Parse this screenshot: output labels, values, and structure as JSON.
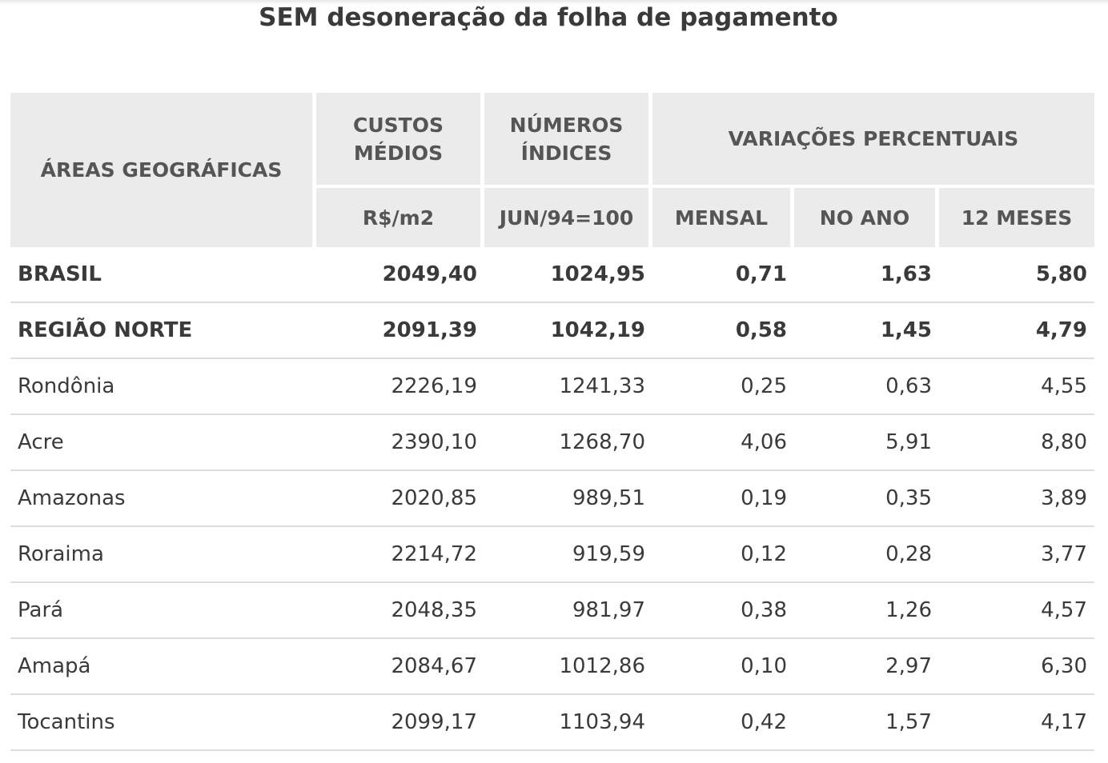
{
  "title": "SEM desoneração da folha de pagamento",
  "header": {
    "areas": "ÁREAS GEOGRÁFICAS",
    "custos_line1": "CUSTOS",
    "custos_line2": "MÉDIOS",
    "numeros_line1": "NÚMEROS",
    "numeros_line2": "ÍNDICES",
    "variacoes": "VARIAÇÕES PERCENTUAIS",
    "unit_custos": "R$/m2",
    "unit_numeros": "JUN/94=100",
    "mensal": "MENSAL",
    "no_ano": "NO ANO",
    "meses12": "12 MESES"
  },
  "rows": [
    {
      "area": "BRASIL",
      "custos": "2049,40",
      "indices": "1024,95",
      "mensal": "0,71",
      "ano": "1,63",
      "meses12": "5,80"
    },
    {
      "area": "REGIÃO NORTE",
      "custos": "2091,39",
      "indices": "1042,19",
      "mensal": "0,58",
      "ano": "1,45",
      "meses12": "4,79"
    },
    {
      "area": "Rondônia",
      "custos": "2226,19",
      "indices": "1241,33",
      "mensal": "0,25",
      "ano": "0,63",
      "meses12": "4,55"
    },
    {
      "area": "Acre",
      "custos": "2390,10",
      "indices": "1268,70",
      "mensal": "4,06",
      "ano": "5,91",
      "meses12": "8,80"
    },
    {
      "area": "Amazonas",
      "custos": "2020,85",
      "indices": "989,51",
      "mensal": "0,19",
      "ano": "0,35",
      "meses12": "3,89"
    },
    {
      "area": "Roraima",
      "custos": "2214,72",
      "indices": "919,59",
      "mensal": "0,12",
      "ano": "0,28",
      "meses12": "3,77"
    },
    {
      "area": "Pará",
      "custos": "2048,35",
      "indices": "981,97",
      "mensal": "0,38",
      "ano": "1,26",
      "meses12": "4,57"
    },
    {
      "area": "Amapá",
      "custos": "2084,67",
      "indices": "1012,86",
      "mensal": "0,10",
      "ano": "2,97",
      "meses12": "6,30"
    },
    {
      "area": "Tocantins",
      "custos": "2099,17",
      "indices": "1103,94",
      "mensal": "0,42",
      "ano": "1,57",
      "meses12": "4,17"
    }
  ]
}
